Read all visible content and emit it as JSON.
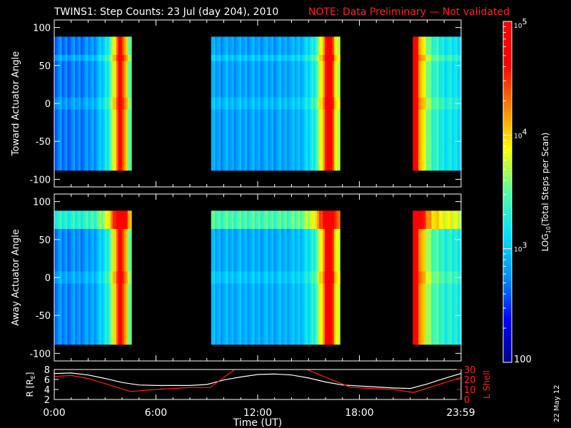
{
  "header": {
    "title": "TWINS1: Step Counts: 23 Jul (day 204), 2010",
    "note": "NOTE: Data Preliminary — Not validated",
    "note_color": "#ff2020"
  },
  "footer": {
    "date_stamp": "22 May 12"
  },
  "chart_data": [
    {
      "type": "heatmap",
      "panel": "top",
      "ylabel": "Toward Actuator Angle",
      "ylim": [
        -110,
        110
      ],
      "yticks": [
        100,
        50,
        0,
        -50,
        -100
      ],
      "xlim": [
        0,
        24
      ],
      "data_angle_range": [
        -88,
        88
      ],
      "blocks": [
        {
          "start_h": 0.0,
          "end_h": 4.55,
          "edge_h": 3.9,
          "base_level": 2.55
        },
        {
          "start_h": 9.25,
          "end_h": 16.85,
          "edge_h": 16.2,
          "base_level": 2.7
        },
        {
          "start_h": 21.15,
          "end_h": 24.0,
          "edge_h": 21.15,
          "base_level": 3.0
        }
      ]
    },
    {
      "type": "heatmap",
      "panel": "bottom",
      "ylabel": "Away Actuator Angle",
      "ylim": [
        -110,
        110
      ],
      "yticks": [
        100,
        50,
        0,
        -50,
        -100
      ],
      "xlim": [
        0,
        24
      ],
      "data_angle_range": [
        -88,
        88
      ],
      "blocks": [
        {
          "start_h": 0.0,
          "end_h": 4.55,
          "edge_h": 3.9,
          "base_level": 2.6
        },
        {
          "start_h": 9.25,
          "end_h": 16.85,
          "edge_h": 16.2,
          "base_level": 2.75
        },
        {
          "start_h": 21.15,
          "end_h": 24.0,
          "edge_h": 21.15,
          "base_level": 3.1
        }
      ]
    },
    {
      "type": "line",
      "panel": "orbit",
      "ylabel_left": "R [R",
      "ylabel_left_sub": "E",
      "ylabel_left_close": "]",
      "ylabel_right": "L Shell",
      "ylim_left": [
        2,
        8
      ],
      "yticks_left": [
        8,
        6,
        4,
        2
      ],
      "ylim_right": [
        0,
        30
      ],
      "yticks_right": [
        30,
        20,
        10,
        0
      ],
      "xlabel": "Time (UT)",
      "xlim": [
        0,
        24
      ],
      "xticks": [
        {
          "value": 0,
          "label": "0:00"
        },
        {
          "value": 6,
          "label": "6:00"
        },
        {
          "value": 12,
          "label": "12:00"
        },
        {
          "value": 18,
          "label": "18:00"
        },
        {
          "value": 23.98,
          "label": "23:59"
        }
      ],
      "series": [
        {
          "name": "R",
          "color": "#ffffff",
          "axis": "left",
          "x": [
            0,
            1,
            2,
            3,
            4,
            5,
            6,
            7,
            8,
            9,
            10,
            11,
            12,
            13,
            14,
            15,
            16,
            17,
            18,
            19,
            20,
            21,
            22,
            23,
            24
          ],
          "y": [
            7.2,
            7.3,
            6.9,
            6.2,
            5.4,
            4.9,
            4.8,
            4.8,
            4.8,
            5.0,
            5.9,
            6.5,
            7.0,
            7.1,
            6.9,
            6.3,
            5.5,
            4.9,
            4.7,
            4.5,
            4.3,
            4.2,
            5.1,
            6.2,
            7.2
          ]
        },
        {
          "name": "L Shell",
          "color": "#ff2020",
          "axis": "right",
          "x": [
            0,
            1,
            2,
            4.5,
            6,
            8,
            9.2,
            10.8,
            14.6,
            17.5,
            20,
            21.2,
            22.5,
            24
          ],
          "y": [
            23,
            24,
            21,
            8,
            10,
            12,
            12,
            32,
            32,
            12,
            10,
            7,
            14,
            22
          ]
        }
      ]
    }
  ],
  "colorbar": {
    "label": "LOG",
    "label_sub": "10",
    "label_rest": "(Total Steps per Scan)",
    "ticks": [
      {
        "level": 5,
        "base": "10",
        "exp": "5"
      },
      {
        "level": 4,
        "base": "10",
        "exp": "4"
      },
      {
        "level": 3,
        "base": "10",
        "exp": "3"
      },
      {
        "level": 2,
        "base": "100",
        "exp": ""
      }
    ],
    "range": [
      2,
      5
    ],
    "colors": [
      "#00008c",
      "#0000ff",
      "#0090ff",
      "#00e0ff",
      "#50ffa0",
      "#ffff00",
      "#ff8000",
      "#ff0000",
      "#ff0000"
    ]
  }
}
